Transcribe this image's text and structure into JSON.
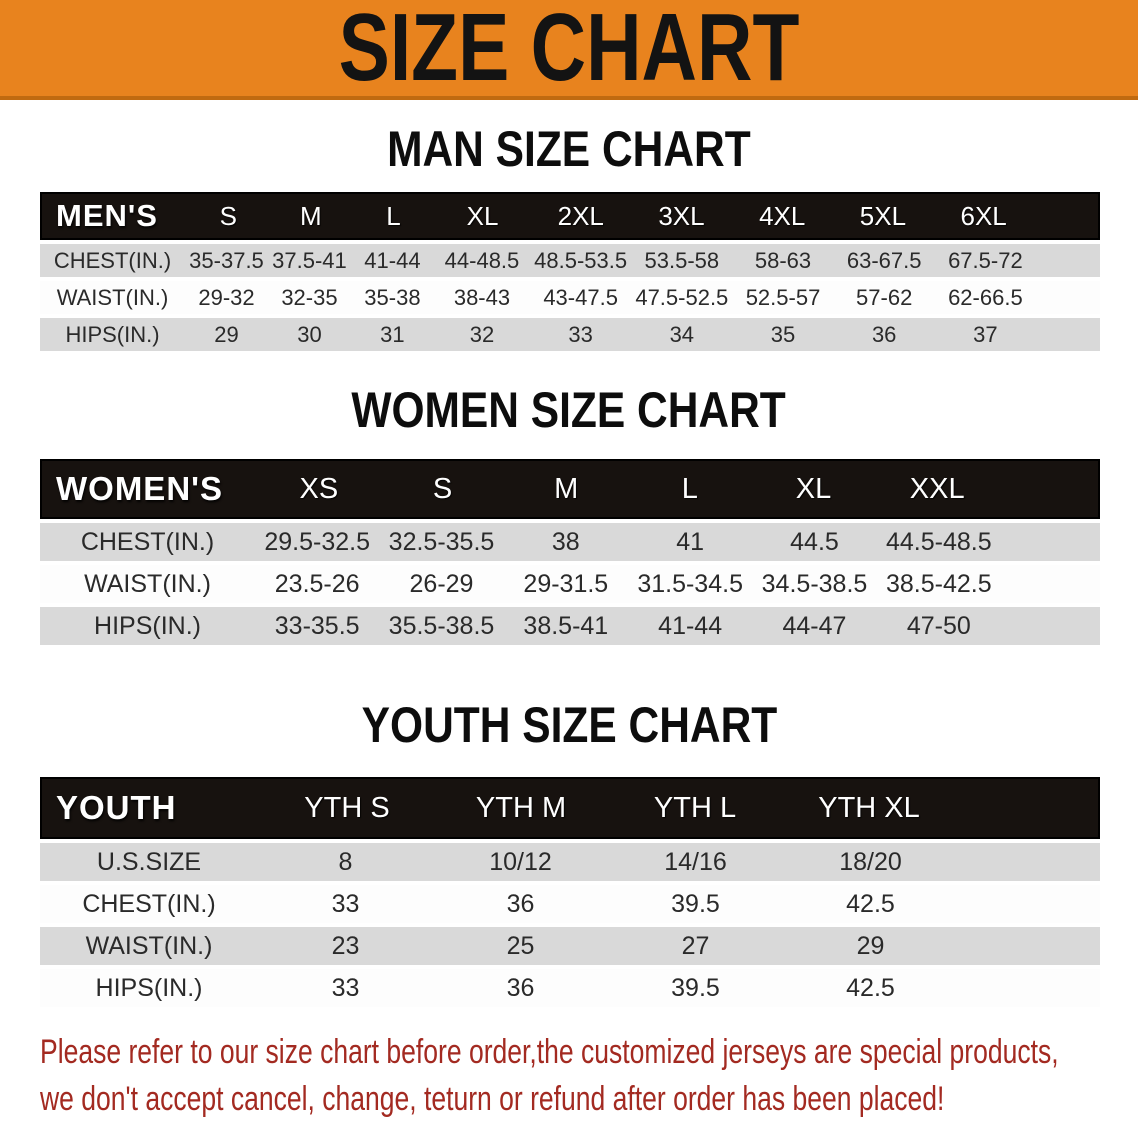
{
  "banner": {
    "title": "SIZE CHART"
  },
  "sections": [
    {
      "heading": "MAN SIZE CHART",
      "table": {
        "label": "MEN'S",
        "columns": [
          "S",
          "M",
          "L",
          "XL",
          "2XL",
          "3XL",
          "4XL",
          "5XL",
          "6XL"
        ],
        "rows": [
          {
            "label": "CHEST(IN.)",
            "values": [
              "35-37.5",
              "37.5-41",
              "41-44",
              "44-48.5",
              "48.5-53.5",
              "53.5-58",
              "58-63",
              "63-67.5",
              "67.5-72"
            ]
          },
          {
            "label": "WAIST(IN.)",
            "values": [
              "29-32",
              "32-35",
              "35-38",
              "38-43",
              "43-47.5",
              "47.5-52.5",
              "52.5-57",
              "57-62",
              "62-66.5"
            ]
          },
          {
            "label": "HIPS(IN.)",
            "values": [
              "29",
              "30",
              "31",
              "32",
              "33",
              "34",
              "35",
              "36",
              "37"
            ]
          }
        ]
      }
    },
    {
      "heading": "WOMEN SIZE CHART",
      "table": {
        "label": "WOMEN'S",
        "columns": [
          "XS",
          "S",
          "M",
          "L",
          "XL",
          "XXL"
        ],
        "rows": [
          {
            "label": "CHEST(IN.)",
            "values": [
              "29.5-32.5",
              "32.5-35.5",
              "38",
              "41",
              "44.5",
              "44.5-48.5"
            ]
          },
          {
            "label": "WAIST(IN.)",
            "values": [
              "23.5-26",
              "26-29",
              "29-31.5",
              "31.5-34.5",
              "34.5-38.5",
              "38.5-42.5"
            ]
          },
          {
            "label": "HIPS(IN.)",
            "values": [
              "33-35.5",
              "35.5-38.5",
              "38.5-41",
              "41-44",
              "44-47",
              "47-50"
            ]
          }
        ]
      }
    },
    {
      "heading": "YOUTH SIZE CHART",
      "table": {
        "label": "YOUTH",
        "columns": [
          "YTH S",
          "YTH M",
          "YTH L",
          "YTH XL"
        ],
        "rows": [
          {
            "label": "U.S.SIZE",
            "values": [
              "8",
              "10/12",
              "14/16",
              "18/20"
            ]
          },
          {
            "label": "CHEST(IN.)",
            "values": [
              "33",
              "36",
              "39.5",
              "42.5"
            ]
          },
          {
            "label": "WAIST(IN.)",
            "values": [
              "23",
              "25",
              "27",
              "29"
            ]
          },
          {
            "label": "HIPS(IN.)",
            "values": [
              "33",
              "36",
              "39.5",
              "42.5"
            ]
          }
        ]
      }
    }
  ],
  "footer": {
    "line1": "Please refer to our size chart before order,the customized jerseys are special products,",
    "line2": "we don't accept cancel, change, teturn or refund after order has been placed!"
  },
  "colors": {
    "banner_bg": "#e8831e",
    "banner_edge": "#c06a10",
    "banner_text": "#131313",
    "table_header_bg": "#17120f",
    "table_header_text": "#ffffff",
    "row_gray": "#d9d9d9",
    "row_white": "#fdfdfd",
    "data_text": "#2a2a2a",
    "footer_text": "#a32a21"
  }
}
